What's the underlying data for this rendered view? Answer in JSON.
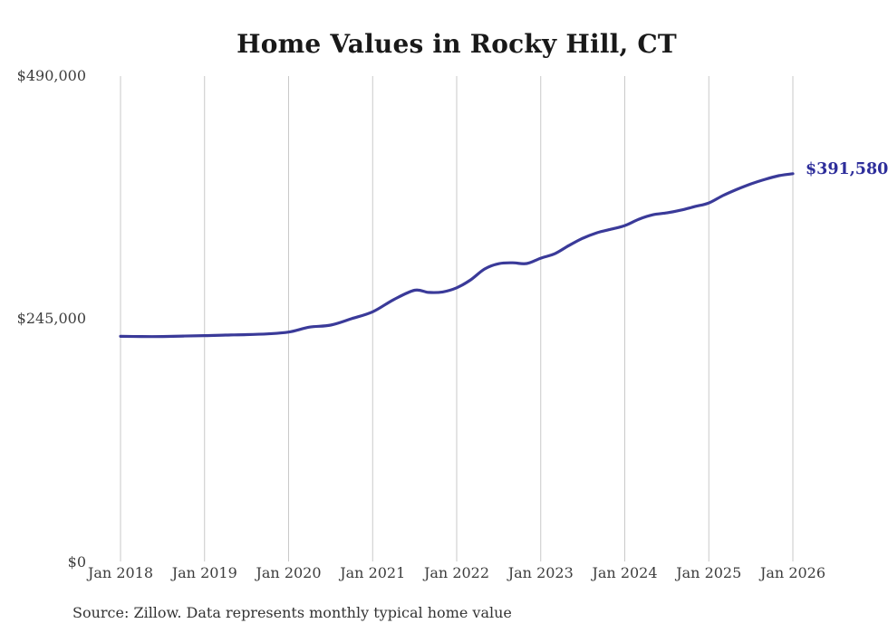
{
  "title": "Home Values in Rocky Hill, CT",
  "source_note": "Source: Zillow. Data represents monthly typical home value",
  "end_label": "$391,580",
  "colors": {
    "line": "#3a3a99",
    "end_label": "#2e2e9b",
    "gridline": "#c9c9c9",
    "title": "#191919",
    "axis_label": "#3d3d3d",
    "source": "#333333"
  },
  "chart_data": {
    "type": "line",
    "title": "Home Values in Rocky Hill, CT",
    "xlabel": "",
    "ylabel": "",
    "x_tick_labels": [
      "Jan 2018",
      "Jan 2019",
      "Jan 2020",
      "Jan 2021",
      "Jan 2022",
      "Jan 2023",
      "Jan 2024",
      "Jan 2025",
      "Jan 2026"
    ],
    "y_ticks": [
      {
        "label": "$0",
        "value": 0
      },
      {
        "label": "$245,000",
        "value": 245000
      },
      {
        "label": "$490,000",
        "value": 490000
      }
    ],
    "ylim": [
      0,
      490000
    ],
    "x_range": [
      "2018-01",
      "2026-01"
    ],
    "grid": "vertical-only",
    "legend_position": "none",
    "annotation": {
      "text": "$391,580",
      "value": 391580,
      "position": "end-of-line"
    },
    "series": [
      {
        "points": [
          [
            "2018-01",
            227500
          ],
          [
            "2018-04",
            227300
          ],
          [
            "2018-07",
            227300
          ],
          [
            "2018-10",
            227800
          ],
          [
            "2019-01",
            228200
          ],
          [
            "2019-04",
            228800
          ],
          [
            "2019-07",
            229200
          ],
          [
            "2019-10",
            230000
          ],
          [
            "2020-01",
            231800
          ],
          [
            "2020-04",
            236800
          ],
          [
            "2020-07",
            238800
          ],
          [
            "2020-10",
            245300
          ],
          [
            "2021-01",
            252300
          ],
          [
            "2021-04",
            264500
          ],
          [
            "2021-07",
            274000
          ],
          [
            "2021-09",
            271800
          ],
          [
            "2021-11",
            272300
          ],
          [
            "2022-01",
            276500
          ],
          [
            "2022-03",
            284500
          ],
          [
            "2022-05",
            295500
          ],
          [
            "2022-07",
            300800
          ],
          [
            "2022-09",
            301700
          ],
          [
            "2022-11",
            300900
          ],
          [
            "2023-01",
            306300
          ],
          [
            "2023-03",
            310800
          ],
          [
            "2023-05",
            319000
          ],
          [
            "2023-07",
            326400
          ],
          [
            "2023-09",
            331900
          ],
          [
            "2023-11",
            335500
          ],
          [
            "2024-01",
            339200
          ],
          [
            "2024-03",
            345600
          ],
          [
            "2024-05",
            350100
          ],
          [
            "2024-07",
            352000
          ],
          [
            "2024-09",
            354700
          ],
          [
            "2024-11",
            358400
          ],
          [
            "2025-01",
            362000
          ],
          [
            "2025-03",
            369400
          ],
          [
            "2025-05",
            375700
          ],
          [
            "2025-07",
            381200
          ],
          [
            "2025-09",
            385800
          ],
          [
            "2025-11",
            389500
          ],
          [
            "2026-01",
            391580
          ]
        ]
      }
    ]
  }
}
